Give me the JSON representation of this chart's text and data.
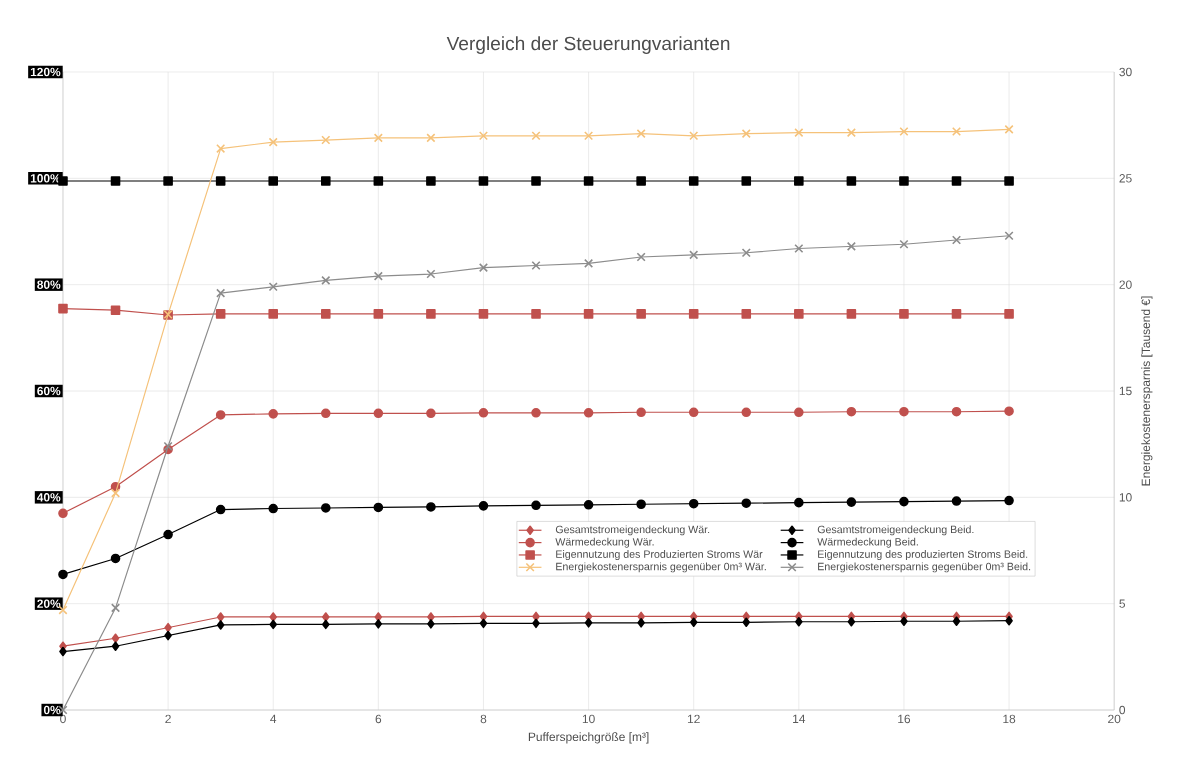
{
  "chart_data": {
    "type": "line",
    "title": "Vergleich der Steuerungvarianten",
    "xlabel": "Pufferspeichgröße [m³]",
    "y2label": "Energiekostenersparnis [Tausend €]",
    "x": [
      0,
      1,
      2,
      3,
      4,
      5,
      6,
      7,
      8,
      9,
      10,
      11,
      12,
      13,
      14,
      15,
      16,
      17,
      18
    ],
    "xlim": [
      0,
      20
    ],
    "xticks": [
      0,
      2,
      4,
      6,
      8,
      10,
      12,
      14,
      16,
      18,
      20
    ],
    "ylim": [
      0,
      120
    ],
    "yticks": [
      {
        "value": 0,
        "label": "0%"
      },
      {
        "value": 20,
        "label": "20%"
      },
      {
        "value": 40,
        "label": "40%"
      },
      {
        "value": 60,
        "label": "60%"
      },
      {
        "value": 80,
        "label": "80%"
      },
      {
        "value": 100,
        "label": "100%"
      },
      {
        "value": 120,
        "label": "120%"
      }
    ],
    "y2lim": [
      0,
      30
    ],
    "y2ticks": [
      0,
      5,
      10,
      15,
      20,
      25,
      30
    ],
    "grid": true,
    "legend": "right",
    "line_style": "solid",
    "series": [
      {
        "name": "Gesamtstromeigendeckung Wär.",
        "color": "#c0504d",
        "marker": "diamond",
        "values": [
          12,
          13.5,
          15.5,
          17.5,
          17.5,
          17.5,
          17.5,
          17.5,
          17.6,
          17.6,
          17.6,
          17.6,
          17.6,
          17.6,
          17.6,
          17.6,
          17.6,
          17.6,
          17.6
        ]
      },
      {
        "name": "Gesamtstromeigendeckung Beid.",
        "color": "#000000",
        "marker": "diamond",
        "values": [
          11,
          12,
          14,
          16,
          16.1,
          16.1,
          16.2,
          16.2,
          16.3,
          16.3,
          16.4,
          16.4,
          16.5,
          16.5,
          16.6,
          16.6,
          16.7,
          16.7,
          16.8
        ]
      },
      {
        "name": "Wärmedeckung Wär.",
        "color": "#c0504d",
        "marker": "circle",
        "values": [
          37,
          42,
          49,
          55.5,
          55.7,
          55.8,
          55.8,
          55.8,
          55.9,
          55.9,
          55.9,
          56,
          56,
          56,
          56,
          56.1,
          56.1,
          56.1,
          56.2
        ]
      },
      {
        "name": "Wärmedeckung Beid.",
        "color": "#000000",
        "marker": "circle",
        "values": [
          25.5,
          28.5,
          33,
          37.7,
          37.9,
          38,
          38.1,
          38.2,
          38.4,
          38.5,
          38.6,
          38.7,
          38.8,
          38.9,
          39,
          39.1,
          39.2,
          39.3,
          39.4
        ]
      },
      {
        "name": "Eigennutzung des Produzierten Stroms Wär",
        "color": "#c0504d",
        "marker": "square",
        "values": [
          75.5,
          75.2,
          74.3,
          74.5,
          74.5,
          74.5,
          74.5,
          74.5,
          74.5,
          74.5,
          74.5,
          74.5,
          74.5,
          74.5,
          74.5,
          74.5,
          74.5,
          74.5,
          74.5
        ]
      },
      {
        "name": "Eigennutzung des produzierten Stroms Beid.",
        "color": "#000000",
        "marker": "square",
        "values": [
          99.5,
          99.5,
          99.5,
          99.5,
          99.5,
          99.5,
          99.5,
          99.5,
          99.5,
          99.5,
          99.5,
          99.5,
          99.5,
          99.5,
          99.5,
          99.5,
          99.5,
          99.5,
          99.5
        ]
      },
      {
        "name": "Energiekostenersparnis gegenüber 0m³ Wär.",
        "color": "#f5c27a",
        "marker": "cross",
        "axis": "y2",
        "values": [
          4.7,
          10.2,
          18.6,
          26.4,
          26.7,
          26.8,
          26.9,
          26.9,
          27,
          27,
          27,
          27.1,
          27,
          27.1,
          27.15,
          27.15,
          27.2,
          27.2,
          27.3
        ]
      },
      {
        "name": "Energiekostenersparnis gegenüber 0m³ Beid.",
        "color": "#8c8c8c",
        "marker": "cross",
        "axis": "y2",
        "values": [
          0,
          4.8,
          12.4,
          19.6,
          19.9,
          20.2,
          20.4,
          20.5,
          20.8,
          20.9,
          21,
          21.3,
          21.4,
          21.5,
          21.7,
          21.8,
          21.9,
          22.1,
          22.3
        ]
      }
    ]
  }
}
